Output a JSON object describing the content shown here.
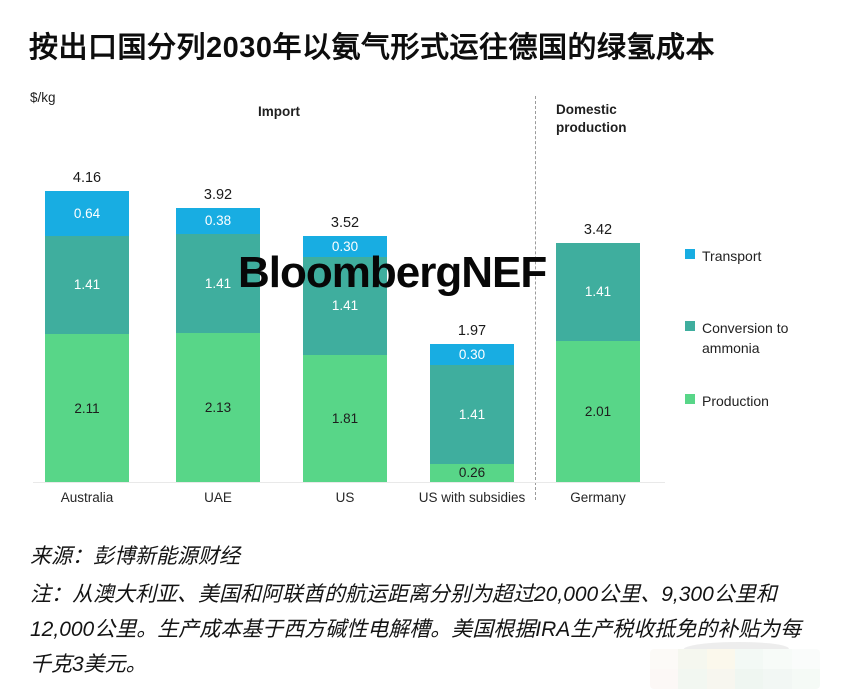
{
  "page": {
    "title": "按出口国分列2030年以氨气形式运往德国的绿氢成本"
  },
  "chart_data": {
    "type": "bar",
    "stacked": true,
    "title": "按出口国分列2030年以氨气形式运往德国的绿氢成本",
    "ylabel": "$/kg",
    "ylim": [
      0,
      4.5
    ],
    "grid": false,
    "legend_position": "right",
    "section_labels": {
      "import": "Import",
      "domestic": "Domestic production"
    },
    "categories": [
      "Australia",
      "UAE",
      "US",
      "US with subsidies",
      "Germany"
    ],
    "series": [
      {
        "name": "Production",
        "color": "#58d688",
        "label_color": "#1d1d1d",
        "values": [
          2.11,
          2.13,
          1.81,
          0.26,
          2.01
        ]
      },
      {
        "name": "Conversion to ammonia",
        "color": "#3fae9e",
        "label_color": "#ffffff",
        "values": [
          1.41,
          1.41,
          1.41,
          1.41,
          1.41
        ]
      },
      {
        "name": "Transport",
        "color": "#18ade2",
        "label_color": "#ffffff",
        "values": [
          0.64,
          0.38,
          0.3,
          0.3,
          0
        ]
      }
    ],
    "totals": [
      4.16,
      3.92,
      3.52,
      1.97,
      3.42
    ],
    "legend": [
      {
        "label": "Transport",
        "color": "#18ade2"
      },
      {
        "label": "Conversion to ammonia",
        "color": "#3fae9e"
      },
      {
        "label": "Production",
        "color": "#58d688"
      }
    ],
    "watermark": "BloombergNEF"
  },
  "footer": {
    "source": "来源：彭博新能源财经",
    "note": "注：从澳大利亚、美国和阿联酋的航运距离分别为超过20,000公里、9,300公里和12,000公里。生产成本基于西方碱性电解槽。美国根据IRA生产税收抵免的补贴为每千克3美元。"
  }
}
